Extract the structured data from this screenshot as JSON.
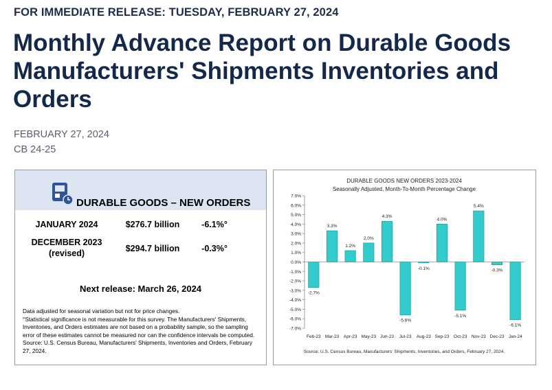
{
  "release_line": "FOR IMMEDIATE RELEASE: TUESDAY, FEBRUARY 27, 2024",
  "title": "Monthly Advance Report on Durable Goods Manufacturers' Shipments Inventories and Orders",
  "date": "FEBRUARY 27, 2024",
  "release_number": "CB 24-25",
  "summary": {
    "icon": "calculator-clock-icon",
    "heading": "DURABLE GOODS – NEW ORDERS",
    "rows": [
      {
        "period": "JANUARY 2024",
        "note": "",
        "value": "$276.7 billion",
        "change": "-6.1%°"
      },
      {
        "period": "DECEMBER 2023",
        "note": "(revised)",
        "value": "$294.7 billion",
        "change": "-0.3%°"
      }
    ],
    "next_release": "Next release: March 26, 2024",
    "notes": [
      "Data adjusted for seasonal variation but not for price changes.",
      "°Statistical significance is not measurable for this survey.  The Manufacturers' Shipments,",
      "Inventories, and Orders estimates are not based on a probability sample, so the sampling",
      "error of these estimates cannot be measured nor can the confidence intervals be computed.",
      "Source: U.S. Census Bureau, Manufacturers' Shipments, Inventories and Orders, February",
      "27, 2024."
    ]
  },
  "chart_data": {
    "type": "bar",
    "title": "DURABLE GOODS NEW ORDERS 2023-2024",
    "subtitle": "Seasonally Adjusted,  Month-To-Month Percentage Change",
    "categories": [
      "Feb-23",
      "Mar-23",
      "Apr-23",
      "May-23",
      "Jun-23",
      "Jul-23",
      "Aug-23",
      "Sep-23",
      "Oct-23",
      "Nov-23",
      "Dec-23",
      "Jan-24"
    ],
    "values": [
      -2.7,
      3.3,
      1.2,
      2.0,
      4.3,
      -5.6,
      -0.1,
      4.0,
      -5.1,
      5.4,
      -0.3,
      -6.1
    ],
    "data_labels": [
      "-2.7%",
      "3.3%",
      "1.2%",
      "2.0%",
      "4.3%",
      "-5.6%",
      "-0.1%",
      "4.0%",
      "-5.1%",
      "5.4%",
      "-0.3%",
      "-6.1%"
    ],
    "yticks": [
      "7.0%",
      "6.0%",
      "5.0%",
      "4.0%",
      "3.0%",
      "2.0%",
      "1.0%",
      "0.0%",
      "-1.0%",
      "-2.0%",
      "-3.0%",
      "-4.0%",
      "-5.0%",
      "-6.0%",
      "-7.0%"
    ],
    "ylim": [
      -7,
      7
    ],
    "bar_color": "#33cccc",
    "source": "Source: U.S. Census Bureau, Manufacturers' Shipments, Inventories, and Orders, February 27, 2024."
  }
}
